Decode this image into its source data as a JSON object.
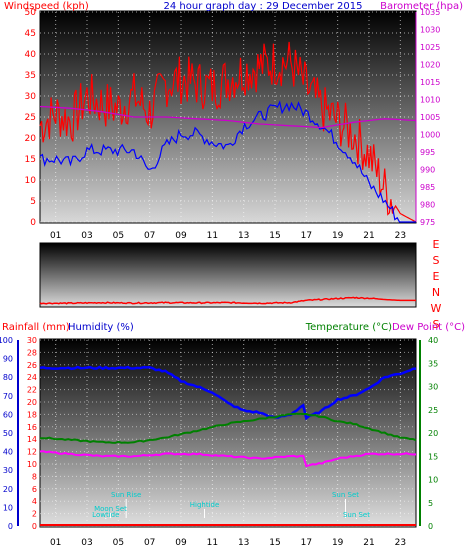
{
  "panels": {
    "wind": {
      "title_left": "Windspeed (kph)",
      "title_center": "24 hour graph day : 29 December 2015",
      "title_right": "Barometer (hpa)"
    },
    "direction": {
      "compass_labels": [
        "E",
        "S",
        "E",
        "N",
        "W",
        "S"
      ]
    },
    "lower": {
      "label_rain": "Rainfall (mm)",
      "label_humidity": "Humidity (%)",
      "label_temp": "Temperature (°C)",
      "label_dew": "Dew Point (°C)"
    }
  },
  "colors": {
    "windspeed": "#ff0000",
    "avg_wind": "#0000ff",
    "barometer": "#cc00cc",
    "direction": "#ff0000",
    "humidity": "#0000ff",
    "temperature": "#008000",
    "dewpoint": "#ff00ff",
    "rainfall": "#ff0000",
    "sun_labels": "#00cccc",
    "frame": "#000000"
  },
  "chart_data": [
    {
      "type": "line",
      "x_tick_labels": [
        "01",
        "03",
        "05",
        "07",
        "09",
        "11",
        "13",
        "15",
        "17",
        "19",
        "21",
        "23"
      ],
      "y_left": {
        "label": "Windspeed (kph)",
        "ticks": [
          "0",
          "5",
          "10",
          "15",
          "20",
          "25",
          "30",
          "35",
          "40",
          "45",
          "50"
        ],
        "range": [
          0,
          50
        ]
      },
      "y_right": {
        "label": "Barometer (hpa)",
        "ticks": [
          "975",
          "980",
          "985",
          "990",
          "995",
          "1000",
          "1005",
          "1010",
          "1015",
          "1020",
          "1025",
          "1030",
          "1035"
        ],
        "range": [
          975,
          1035
        ]
      },
      "grid": true,
      "series": [
        {
          "name": "Windspeed (kph)",
          "axis": "left",
          "x": [
            0,
            1,
            2,
            3,
            4,
            5,
            6,
            7,
            8,
            9,
            10,
            11,
            12,
            13,
            14,
            15,
            16,
            17,
            18,
            19,
            20,
            21,
            22,
            23,
            24
          ],
          "values": [
            23,
            26,
            24,
            30,
            28,
            27,
            30,
            26,
            33,
            34,
            33,
            32,
            34,
            36,
            37,
            38,
            38,
            32,
            27,
            24,
            21,
            16,
            8,
            2,
            0
          ]
        },
        {
          "name": "Avg Windspeed",
          "axis": "left",
          "x": [
            0,
            1,
            2,
            3,
            4,
            5,
            6,
            7,
            8,
            9,
            10,
            11,
            12,
            13,
            14,
            15,
            16,
            17,
            18,
            19,
            20,
            21,
            22,
            23,
            24
          ],
          "values": [
            15,
            15,
            14,
            17,
            17,
            17,
            17,
            12,
            18,
            21,
            21,
            19,
            18,
            23,
            25,
            27,
            28,
            26,
            23,
            19,
            15,
            9,
            5,
            0,
            0
          ]
        },
        {
          "name": "Barometer (hpa)",
          "axis": "right",
          "x": [
            0,
            2,
            4,
            6,
            8,
            10,
            12,
            14,
            16,
            18,
            20,
            22,
            24
          ],
          "values": [
            1008,
            1007.5,
            1006.5,
            1005,
            1005,
            1004.5,
            1004,
            1003,
            1002.5,
            1002,
            1003.5,
            1004.5,
            1004
          ]
        }
      ]
    },
    {
      "type": "line",
      "compass_labels": [
        "E",
        "S",
        "E",
        "N",
        "W",
        "S"
      ],
      "series": [
        {
          "name": "Wind direction",
          "x": [
            0,
            2,
            4,
            6,
            8,
            10,
            12,
            14,
            16,
            17,
            18,
            19,
            20,
            21,
            22,
            23,
            24
          ],
          "values": [
            0.15,
            0.15,
            0.18,
            0.16,
            0.18,
            0.17,
            0.18,
            0.15,
            0.18,
            0.3,
            0.35,
            0.4,
            0.45,
            0.42,
            0.35,
            0.3,
            0.3
          ]
        }
      ]
    },
    {
      "type": "line",
      "x_tick_labels": [
        "01",
        "03",
        "05",
        "07",
        "09",
        "11",
        "13",
        "15",
        "17",
        "19",
        "21",
        "23"
      ],
      "y_humidity": {
        "label": "Humidity (%)",
        "ticks": [
          "0",
          "10",
          "20",
          "30",
          "40",
          "50",
          "60",
          "70",
          "80",
          "90",
          "100"
        ],
        "range": [
          0,
          100
        ]
      },
      "y_rain": {
        "label": "Rainfall (mm)",
        "ticks": [
          "0",
          "2",
          "4",
          "6",
          "8",
          "10",
          "12",
          "14",
          "16",
          "18",
          "20",
          "22",
          "24",
          "26",
          "28",
          "30"
        ],
        "range": [
          0,
          30
        ]
      },
      "y_temp": {
        "label": "Temperature (°C)",
        "ticks": [
          "0",
          "5",
          "10",
          "15",
          "20",
          "25",
          "30",
          "35",
          "40"
        ],
        "range": [
          0,
          40
        ]
      },
      "grid": true,
      "series": [
        {
          "name": "Humidity (%)",
          "axis": "humidity",
          "x": [
            0,
            3,
            6,
            7,
            8,
            9,
            10,
            11,
            12,
            13,
            14,
            15,
            16,
            16.8,
            17,
            18,
            19,
            20,
            21,
            22,
            23,
            24
          ],
          "values": [
            85,
            85,
            85,
            85,
            83,
            78,
            75,
            72,
            66,
            62,
            61,
            58,
            60,
            65,
            58,
            62,
            68,
            70,
            74,
            80,
            82,
            85
          ]
        },
        {
          "name": "Temperature (°C)",
          "axis": "temp",
          "x": [
            0,
            2,
            4,
            6,
            8,
            10,
            12,
            14,
            16,
            17,
            18,
            19,
            20,
            21,
            22,
            23,
            24
          ],
          "values": [
            19,
            18.5,
            18,
            18,
            19,
            20.5,
            22,
            23,
            24,
            24,
            23.5,
            22.5,
            22,
            21,
            20,
            19,
            18.5
          ]
        },
        {
          "name": "Dew Point (°C)",
          "axis": "temp",
          "x": [
            0,
            2,
            4,
            6,
            8,
            10,
            12,
            14,
            16,
            16.8,
            17,
            18,
            19,
            20,
            21,
            22,
            23,
            24
          ],
          "values": [
            16,
            15.5,
            15,
            15,
            15.5,
            15.5,
            15,
            14.5,
            15,
            15,
            13,
            13.5,
            14.5,
            15,
            15.5,
            15.5,
            15.5,
            15.5
          ]
        },
        {
          "name": "Rainfall (mm)",
          "axis": "rain",
          "x": [
            0,
            24
          ],
          "values": [
            0,
            0
          ]
        }
      ],
      "annotations": [
        {
          "text": "Sun Rise",
          "x": 5.5
        },
        {
          "text": "Moon Set",
          "x": 4.5
        },
        {
          "text": "Lowtide",
          "x": 4.2
        },
        {
          "text": "Hightide",
          "x": 10.5
        },
        {
          "text": "Sun Set",
          "x": 19.5
        },
        {
          "text": "Sun Set",
          "x": 20.2
        }
      ]
    }
  ]
}
